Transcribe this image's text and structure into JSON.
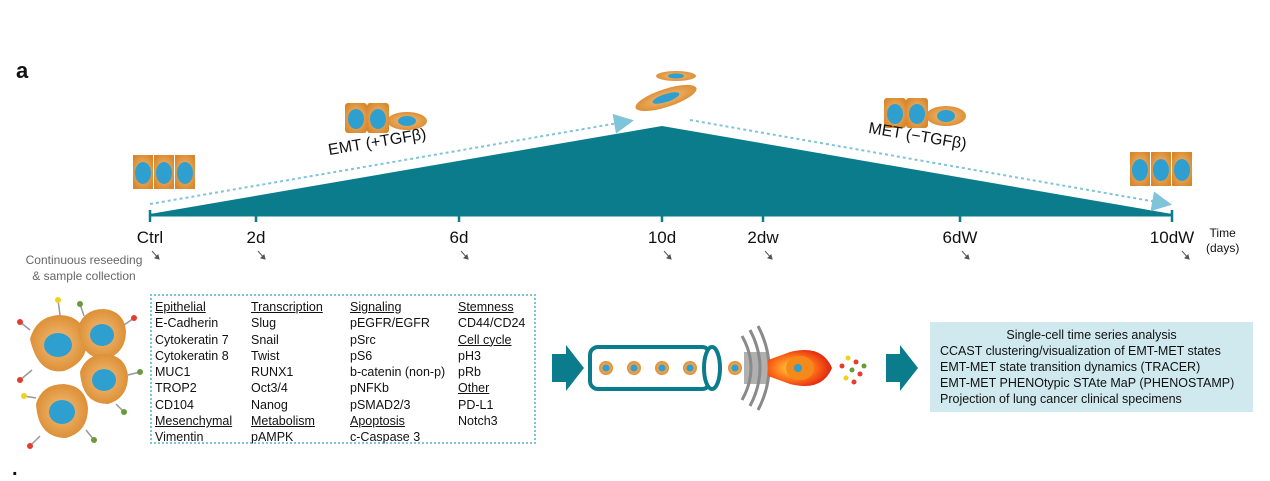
{
  "panel_letter": "a",
  "stray_mark": ".",
  "phases": {
    "emt": "EMT (+TGFβ)",
    "met": "MET (−TGFβ)"
  },
  "timepoints": [
    "Ctrl",
    "2d",
    "6d",
    "10d",
    "2dw",
    "6dW",
    "10dW"
  ],
  "time_unit": {
    "line1": "Time",
    "line2": "(days)"
  },
  "reseed": {
    "line1": "Continuous reseeding",
    "line2": "& sample collection"
  },
  "markers": {
    "col1": {
      "h1": "Epithelial",
      "items1": [
        "E-Cadherin",
        "Cytokeratin 7",
        "Cytokeratin 8",
        "MUC1",
        "TROP2",
        "CD104"
      ],
      "h2": "Mesenchymal",
      "items2": [
        "Vimentin"
      ]
    },
    "col2": {
      "h1": "Transcription",
      "items1": [
        "Slug",
        "Snail",
        "Twist",
        "RUNX1",
        "Oct3/4",
        "Nanog"
      ],
      "h2": "Metabolism",
      "items2": [
        "pAMPK"
      ]
    },
    "col3": {
      "h1": "Signaling",
      "items1": [
        "pEGFR/EGFR",
        "pSrc",
        "pS6",
        "b-catenin (non-p)",
        "pNFKb",
        "pSMAD2/3"
      ],
      "h2": "Apoptosis",
      "items2": [
        "c-Caspase 3"
      ]
    },
    "col4": {
      "h1": "Stemness",
      "items1": [
        "CD44/CD24"
      ],
      "h2": "Cell cycle",
      "items2": [
        "pH3",
        "pRb"
      ],
      "h3": "Other",
      "items3": [
        "PD-L1",
        "Notch3"
      ]
    }
  },
  "summary": {
    "title": "Single-cell time series analysis",
    "lines": [
      "CCAST clustering/visualization of EMT-MET states",
      "EMT-MET state transition dynamics (TRACER)",
      "EMT-MET PHENOtypic STAte MaP (PHENOSTAMP)",
      "Projection of lung cancer clinical specimens"
    ]
  },
  "colors": {
    "teal": "#0b7c8c",
    "light_blue": "#7fc4d8",
    "cell_orange": "#e59a3a",
    "nucleus_blue": "#2f9fd0",
    "summary_bg": "#cfe9ee"
  }
}
